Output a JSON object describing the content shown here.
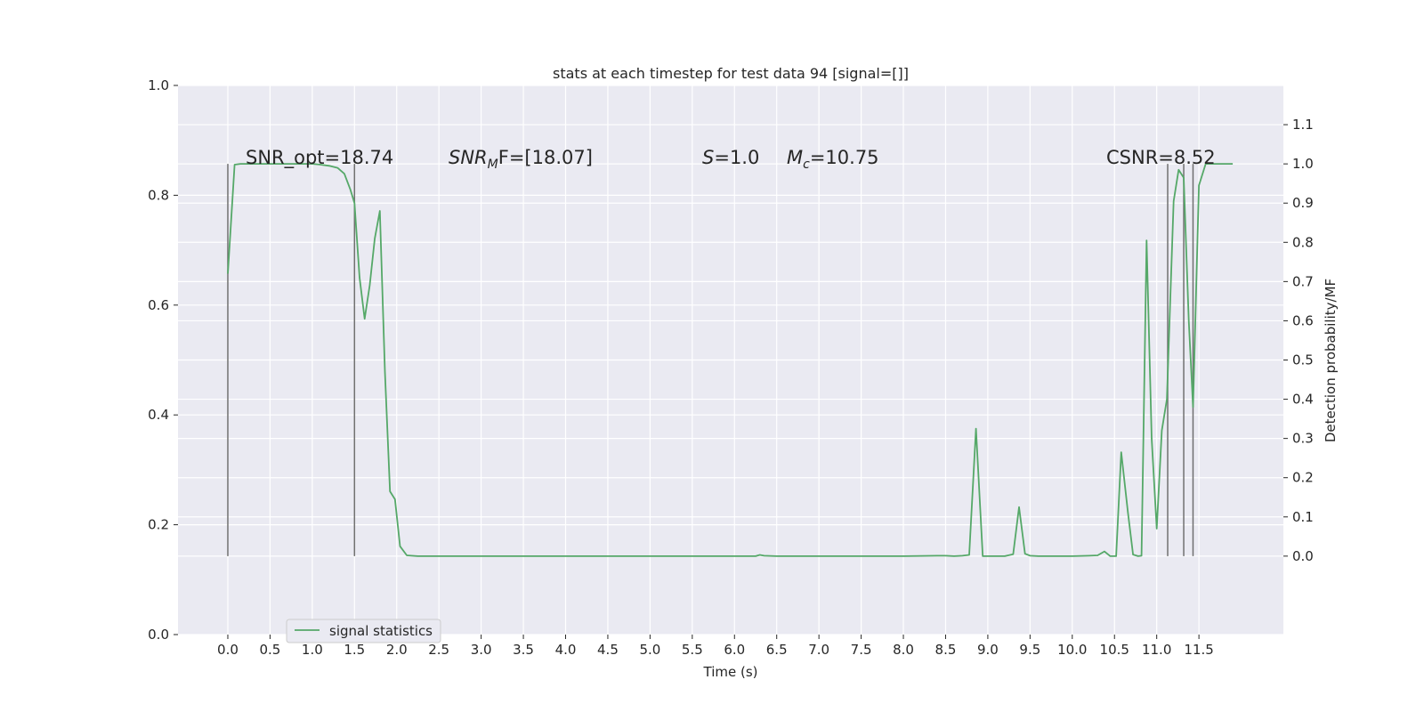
{
  "chart_data": {
    "type": "line",
    "title": "stats at each timestep for test data 94 [signal=[]]",
    "xlabel": "Time (s)",
    "ylabel_left": "",
    "ylabel_right": "Detection probability/MF",
    "x_ticks": [
      "0.0",
      "0.5",
      "1.0",
      "1.5",
      "2.0",
      "2.5",
      "3.0",
      "3.5",
      "4.0",
      "4.5",
      "5.0",
      "5.5",
      "6.0",
      "6.5",
      "7.0",
      "7.5",
      "8.0",
      "8.5",
      "9.0",
      "9.5",
      "10.0",
      "10.5",
      "11.0",
      "11.5"
    ],
    "y_left_ticks": [
      "0.0",
      "0.2",
      "0.4",
      "0.6",
      "0.8",
      "1.0"
    ],
    "y_right_ticks": [
      "0.0",
      "0.1",
      "0.2",
      "0.3",
      "0.4",
      "0.5",
      "0.6",
      "0.7",
      "0.8",
      "0.9",
      "1.0",
      "1.1"
    ],
    "xlim": [
      -0.59,
      12.5
    ],
    "ylim_left": [
      0.0,
      1.0
    ],
    "ylim_right": [
      -0.2,
      1.2
    ],
    "grid": true,
    "legend_placement": "lower-left",
    "colors": {
      "series": "#55a868",
      "vlines": "#707070",
      "plot_bg": "#eaeaf2",
      "grid": "#ffffff"
    },
    "annotations": [
      {
        "text": "SNR_opt=18.74",
        "italic_prefix": ""
      },
      {
        "text": "F=[18.07]",
        "italic_prefix": "SNR",
        "sub": "M"
      },
      {
        "text": "=1.0",
        "italic_prefix": "S"
      },
      {
        "text": "=10.75",
        "italic_prefix": "M",
        "sub": "c"
      },
      {
        "text": "CSNR=8.52",
        "italic_prefix": ""
      }
    ],
    "vertical_lines_x": [
      0.0,
      1.5,
      11.13,
      11.32,
      11.43
    ],
    "series": [
      {
        "name": "signal statistics",
        "x": [
          0.0,
          0.08,
          0.15,
          0.25,
          0.5,
          0.75,
          1.0,
          1.1,
          1.2,
          1.3,
          1.38,
          1.45,
          1.5,
          1.56,
          1.62,
          1.68,
          1.74,
          1.8,
          1.86,
          1.92,
          1.98,
          2.04,
          2.12,
          2.25,
          2.5,
          3.0,
          4.0,
          5.0,
          6.0,
          6.25,
          6.3,
          6.35,
          6.5,
          7.0,
          8.0,
          8.4,
          8.5,
          8.6,
          8.7,
          8.78,
          8.86,
          8.94,
          9.0,
          9.1,
          9.2,
          9.3,
          9.37,
          9.44,
          9.5,
          9.6,
          9.8,
          10.0,
          10.2,
          10.3,
          10.38,
          10.45,
          10.52,
          10.58,
          10.66,
          10.72,
          10.78,
          10.82,
          10.88,
          10.94,
          11.0,
          11.06,
          11.12,
          11.2,
          11.26,
          11.32,
          11.38,
          11.43,
          11.5,
          11.58,
          11.68,
          11.8,
          11.9
        ],
        "values": [
          0.72,
          0.998,
          1.0,
          1.0,
          1.0,
          1.0,
          1.0,
          0.998,
          0.995,
          0.99,
          0.975,
          0.935,
          0.9,
          0.71,
          0.605,
          0.69,
          0.81,
          0.88,
          0.47,
          0.165,
          0.145,
          0.025,
          0.002,
          0.0,
          0.0,
          0.0,
          0.0,
          0.0,
          0.0,
          0.0,
          0.003,
          0.001,
          0.0,
          0.0,
          0.0,
          0.001,
          0.001,
          0.0,
          0.001,
          0.003,
          0.325,
          0.0,
          0.0,
          0.0,
          0.0,
          0.005,
          0.125,
          0.006,
          0.001,
          0.0,
          0.0,
          0.0,
          0.001,
          0.002,
          0.012,
          0.0,
          0.0,
          0.265,
          0.11,
          0.004,
          0.0,
          0.001,
          0.805,
          0.3,
          0.07,
          0.32,
          0.4,
          0.905,
          0.985,
          0.965,
          0.6,
          0.38,
          0.945,
          1.0,
          1.0,
          1.0,
          1.0
        ]
      }
    ]
  }
}
